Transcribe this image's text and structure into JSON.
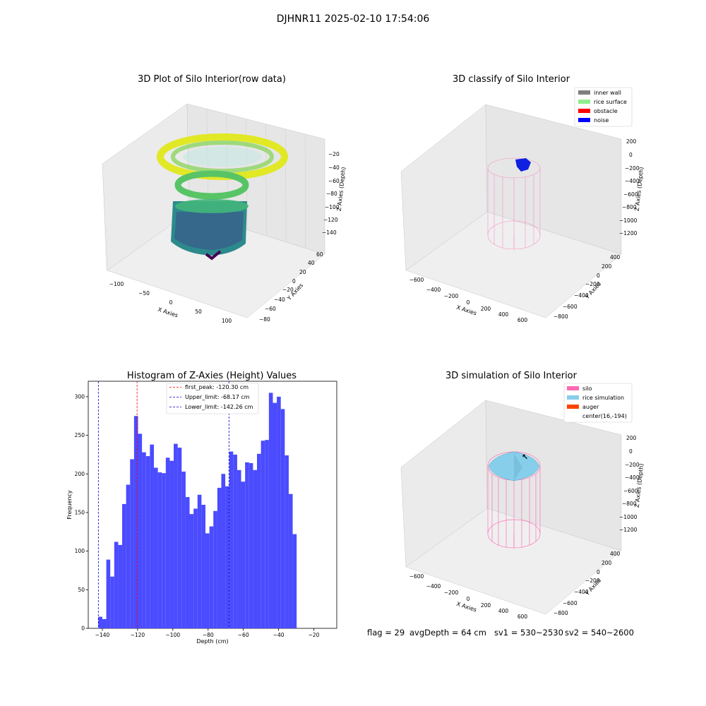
{
  "figure": {
    "suptitle": "DJHNR11 2025-02-10 17:54:06",
    "footer": {
      "flag": "flag = 29",
      "avg_depth": "avgDepth = 64 cm",
      "sv1": "sv1 = 530~2530",
      "sv2": "sv2 = 540~2600"
    }
  },
  "panels": {
    "raw": {
      "title": "3D Plot of Silo Interior(row data)",
      "xlabel": "X Axies",
      "ylabel": "Y Axies",
      "zlabel": "Z Axies (Depth)",
      "xticks": [
        "−100",
        "−50",
        "0",
        "50",
        "100"
      ],
      "yticks": [
        "−80",
        "−60",
        "−40",
        "−20",
        "0",
        "20",
        "40",
        "60"
      ],
      "zticks": [
        "−20",
        "−40",
        "−60",
        "−80",
        "−100",
        "−120",
        "−140"
      ]
    },
    "classify": {
      "title": "3D classify of Silo Interior",
      "xlabel": "X Axies",
      "ylabel": "Y Axies",
      "zlabel": "Z Axies (Depth)",
      "xticks": [
        "−600",
        "−400",
        "−200",
        "0",
        "200",
        "400",
        "600"
      ],
      "yticks": [
        "−800",
        "−600",
        "−400",
        "−200",
        "0",
        "200",
        "400"
      ],
      "zticks": [
        "200",
        "0",
        "−200",
        "−400",
        "−600",
        "−800",
        "−1000",
        "−1200"
      ],
      "legend": [
        {
          "label": "inner wall",
          "color": "#808080"
        },
        {
          "label": "rice surface",
          "color": "#90ee90"
        },
        {
          "label": "obstacle",
          "color": "#ff0000"
        },
        {
          "label": "noise",
          "color": "#0000ff"
        }
      ]
    },
    "simulation": {
      "title": "3D simulation of Silo Interior",
      "xlabel": "X Axies",
      "ylabel": "Y Axies",
      "zlabel": "Z Axies (Depth)",
      "xticks": [
        "−600",
        "−400",
        "−200",
        "0",
        "200",
        "400",
        "600"
      ],
      "yticks": [
        "−800",
        "−600",
        "−400",
        "−200",
        "0",
        "200",
        "400"
      ],
      "zticks": [
        "200",
        "0",
        "−200",
        "−400",
        "−600",
        "−800",
        "−1000",
        "−1200"
      ],
      "legend": [
        {
          "label": "silo",
          "color": "#ff69b4"
        },
        {
          "label": "rice simulation",
          "color": "#87ceeb"
        },
        {
          "label": "auger",
          "color": "#ff4500"
        },
        {
          "label": "center(16,-194)",
          "color": ""
        }
      ]
    }
  },
  "chart_data": {
    "type": "bar",
    "title": "Histogram of Z-Axies (Height) Values",
    "xlabel": "Depth (cm)",
    "ylabel": "Frequency",
    "xlim": [
      -148,
      -7
    ],
    "ylim": [
      0,
      320
    ],
    "xticks": [
      -140,
      -120,
      -100,
      -80,
      -60,
      -40,
      -20
    ],
    "yticks": [
      0,
      50,
      100,
      150,
      200,
      250,
      300
    ],
    "bar_color": "#4b4bff",
    "bin_start": -142.26,
    "bin_width": 2.25,
    "values": [
      15,
      12,
      89,
      67,
      112,
      108,
      161,
      186,
      219,
      275,
      252,
      228,
      223,
      238,
      208,
      202,
      201,
      221,
      217,
      239,
      234,
      203,
      170,
      148,
      155,
      173,
      160,
      123,
      132,
      152,
      182,
      200,
      184,
      229,
      225,
      205,
      190,
      215,
      214,
      205,
      226,
      243,
      244,
      305,
      292,
      300,
      284,
      224,
      174,
      122
    ],
    "lines": [
      {
        "label": "first_peak: -120.30 cm",
        "x": -120.3,
        "color": "#ff0000"
      },
      {
        "label": "Upper_limit: -68.17 cm",
        "x": -68.17,
        "color": "#0000cc"
      },
      {
        "label": "Lower_limit: -142.26 cm",
        "x": -142.26,
        "color": "#0000cc"
      }
    ]
  }
}
